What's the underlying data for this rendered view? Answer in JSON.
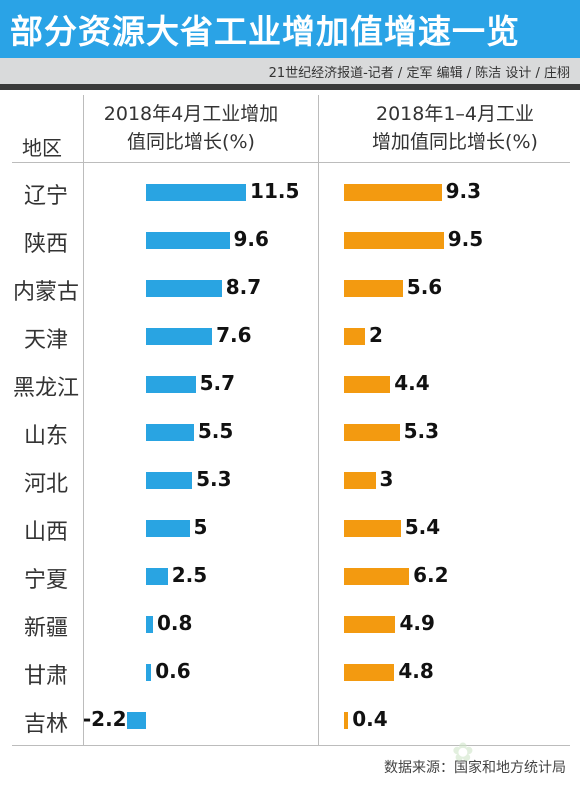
{
  "header": {
    "title": "部分资源大省工业增加值增速一览",
    "credit": "21世纪经济报道-记者 / 定军   编辑 / 陈洁    设计 / 庄栩"
  },
  "footer": {
    "source": "数据来源：国家和地方统计局"
  },
  "chart_data": {
    "type": "bar",
    "orientation": "horizontal",
    "category_header": "地区",
    "categories": [
      "辽宁",
      "陕西",
      "内蒙古",
      "天津",
      "黑龙江",
      "山东",
      "河北",
      "山西",
      "宁夏",
      "新疆",
      "甘肃",
      "吉林"
    ],
    "series": [
      {
        "name": "2018年4月工业增加值同比增长(%)",
        "header_lines": [
          "2018年4月工业增加",
          "值同比增长(%)"
        ],
        "color": "#29a4e2",
        "values": [
          11.5,
          9.6,
          8.7,
          7.6,
          5.7,
          5.5,
          5.3,
          5,
          2.5,
          0.8,
          0.6,
          -2.2
        ],
        "labels": [
          "11.5",
          "9.6",
          "8.7",
          "7.6",
          "5.7",
          "5.5",
          "5.3",
          "5",
          "2.5",
          "0.8",
          "0.6",
          "-2.2"
        ]
      },
      {
        "name": "2018年1-4月工业增加值同比增长(%)",
        "header_lines": [
          "2018年1–4月工业",
          "增加值同比增长(%)"
        ],
        "color": "#f39a10",
        "values": [
          9.3,
          9.5,
          5.6,
          2,
          4.4,
          5.3,
          3,
          5.4,
          6.2,
          4.9,
          4.8,
          0.4
        ],
        "labels": [
          "9.3",
          "9.5",
          "5.6",
          "2",
          "4.4",
          "5.3",
          "3",
          "5.4",
          "6.2",
          "4.9",
          "4.8",
          "0.4"
        ]
      }
    ],
    "grid": false,
    "legend": "none"
  }
}
